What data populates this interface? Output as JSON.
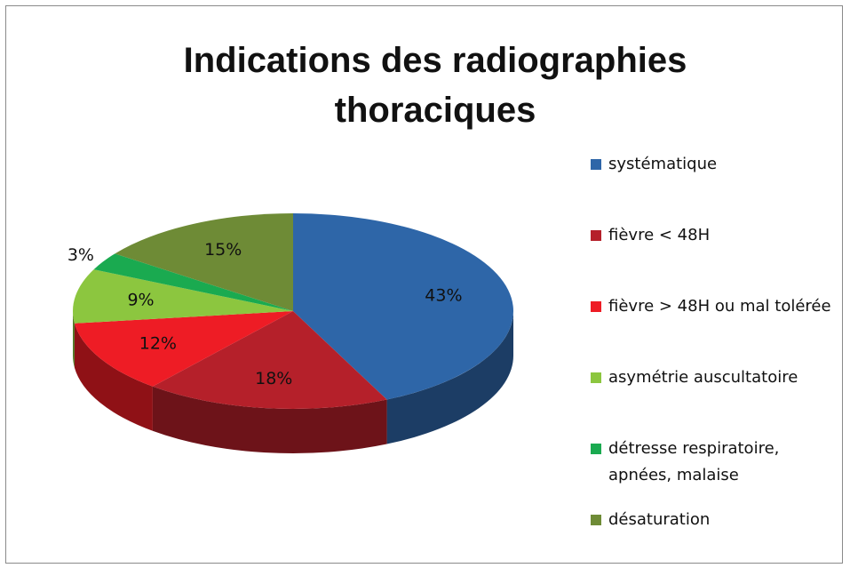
{
  "chart_data": {
    "type": "pie3d",
    "title": "Indications des radiographies thoraciques",
    "categories": [
      "systématique",
      "fièvre < 48H",
      "fièvre > 48H ou mal tolérée",
      "asymétrie auscultatoire",
      "détresse respiratoire, apnées, malaise",
      "désaturation"
    ],
    "values": [
      43,
      18,
      12,
      9,
      3,
      15
    ],
    "value_labels": [
      "43%",
      "18%",
      "12%",
      "9%",
      "3%",
      "15%"
    ],
    "colors": [
      "#2e66a8",
      "#b5202a",
      "#ee1c25",
      "#8cc63f",
      "#1aaa50",
      "#6e8b36"
    ],
    "legend": "right"
  }
}
